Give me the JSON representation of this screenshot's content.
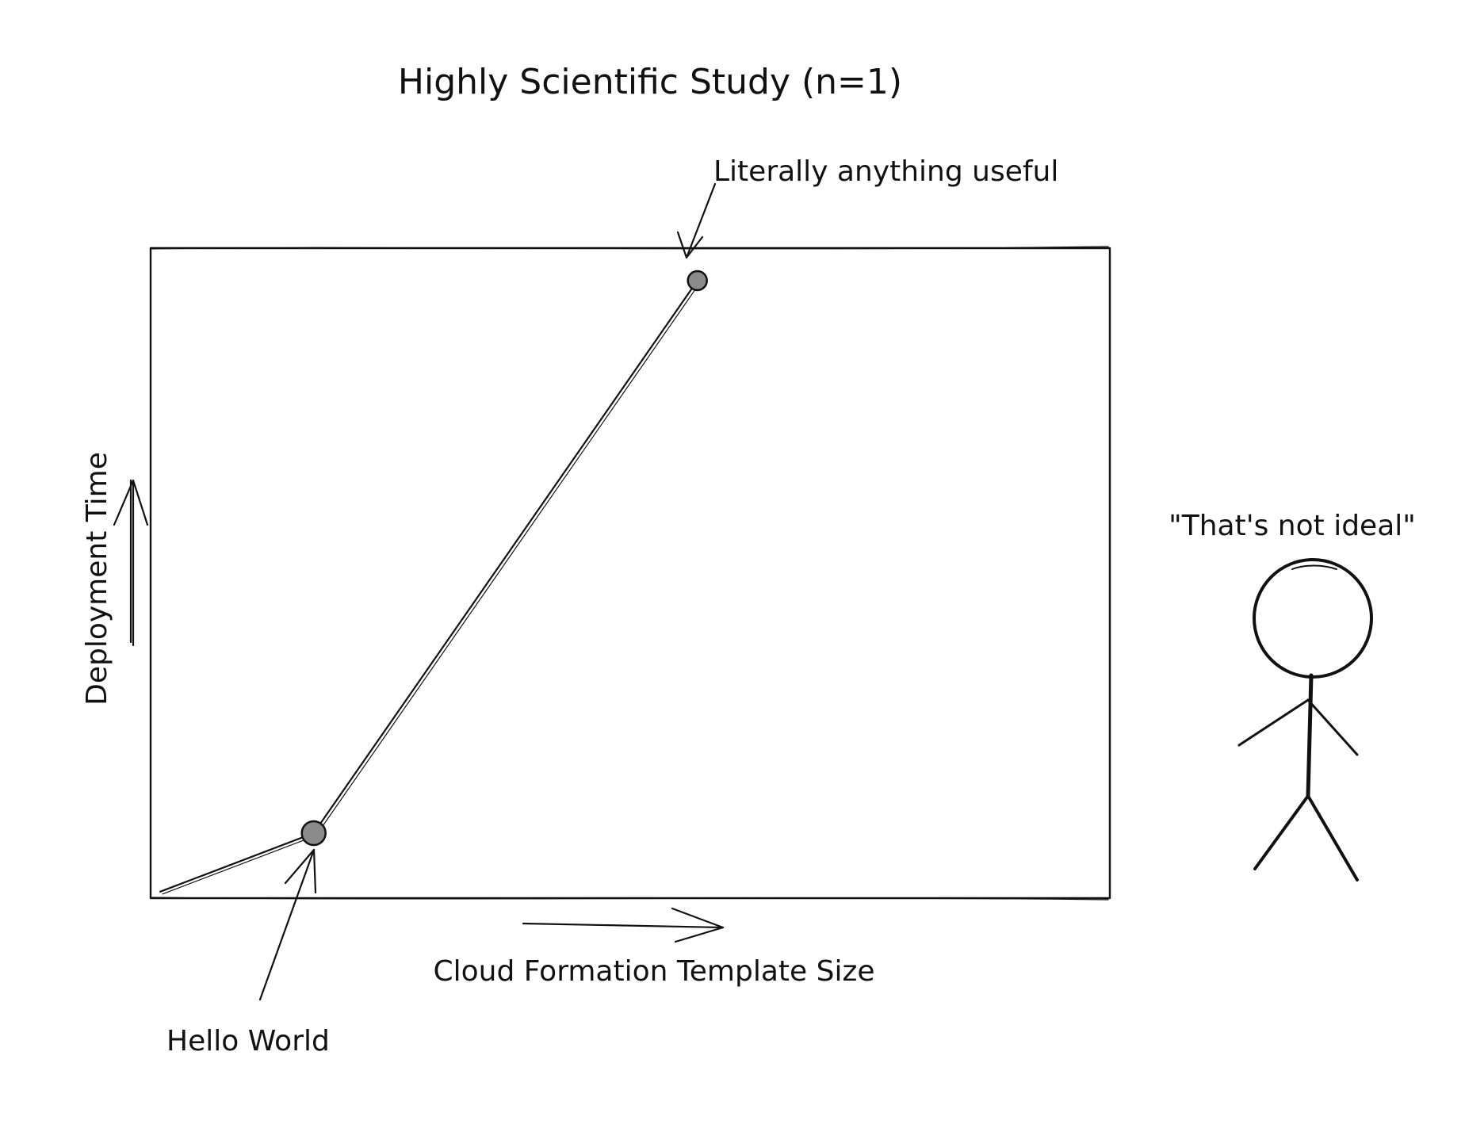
{
  "chart_data": {
    "type": "line",
    "title": "Highly Scientific Study (n=1)",
    "xlabel": "Cloud Formation Template Size",
    "ylabel": "Deployment Time",
    "grid": false,
    "legend": "none",
    "series": [
      {
        "points": [
          {
            "x": 1,
            "y": 1
          },
          {
            "x": 17,
            "y": 10
          },
          {
            "x": 57,
            "y": 95
          }
        ]
      }
    ],
    "xlim": [
      0,
      100
    ],
    "ylim": [
      0,
      100
    ],
    "annotations": [
      {
        "text": "Literally anything useful",
        "x": 57,
        "y": 95
      },
      {
        "text": "Hello World",
        "x": 17,
        "y": 10
      }
    ],
    "side_note": "\"That's not ideal\""
  },
  "colors": {
    "ink": "#111111",
    "background": "#ffffff"
  }
}
